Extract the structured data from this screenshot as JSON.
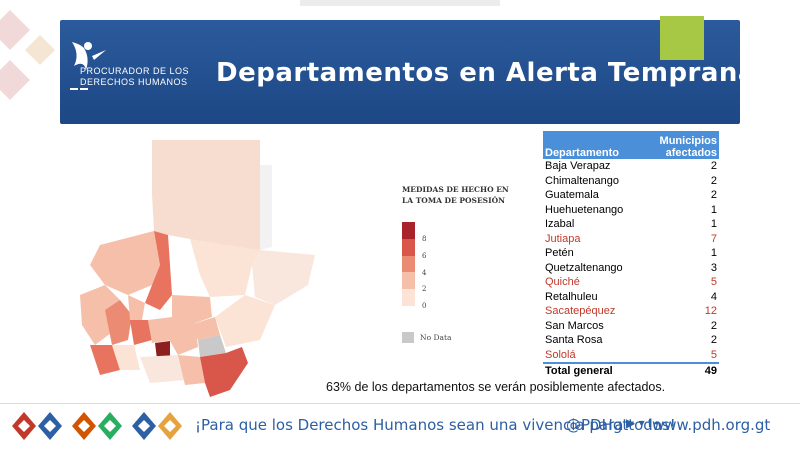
{
  "header": {
    "logo_line1": "PROCURADOR DE LOS",
    "logo_line2": "DERECHOS HUMANOS",
    "title": "Departamentos en Alerta Temprana"
  },
  "legend": {
    "title": "MEDIDAS DE HECHO EN LA TOMA DE POSESIÓN",
    "ticks": [
      "8",
      "6",
      "4",
      "2",
      "0"
    ],
    "colors": [
      "#a8242a",
      "#d9564a",
      "#ec8b74",
      "#f5bfa9",
      "#fbe3d6"
    ],
    "no_data": "No Data",
    "no_data_color": "#c9c9c9"
  },
  "table": {
    "col1": "Departamento",
    "col2_line1": "Municipios",
    "col2_line2": "afectados",
    "rows": [
      {
        "name": "Baja Verapaz",
        "value": "2",
        "highlight": false
      },
      {
        "name": "Chimaltenango",
        "value": "2",
        "highlight": false
      },
      {
        "name": "Guatemala",
        "value": "2",
        "highlight": false
      },
      {
        "name": "Huehuetenango",
        "value": "1",
        "highlight": false
      },
      {
        "name": "Izabal",
        "value": "1",
        "highlight": false
      },
      {
        "name": "Jutiapa",
        "value": "7",
        "highlight": true
      },
      {
        "name": "Petén",
        "value": "1",
        "highlight": false
      },
      {
        "name": "Quetzaltenango",
        "value": "3",
        "highlight": false
      },
      {
        "name": "Quiché",
        "value": "5",
        "highlight": true
      },
      {
        "name": "Retalhuleu",
        "value": "4",
        "highlight": false
      },
      {
        "name": "Sacatepéquez",
        "value": "12",
        "highlight": true
      },
      {
        "name": "San Marcos",
        "value": "2",
        "highlight": false
      },
      {
        "name": "Santa Rosa",
        "value": "2",
        "highlight": false
      },
      {
        "name": "Sololá",
        "value": "5",
        "highlight": true
      }
    ],
    "total_label": "Total general",
    "total_value": "49",
    "highlight_color": "#c0392b",
    "header_color": "#4b8fd8"
  },
  "footnote": "63% de los departamentos se verán posiblemente afectados.",
  "footer": {
    "slogan": "¡Para que los Derechos Humanos sean una vivencia para todos!",
    "handle": "@PDHgt",
    "social_icons": "▶ ▾ f •",
    "url": "www.pdh.org.gt"
  }
}
